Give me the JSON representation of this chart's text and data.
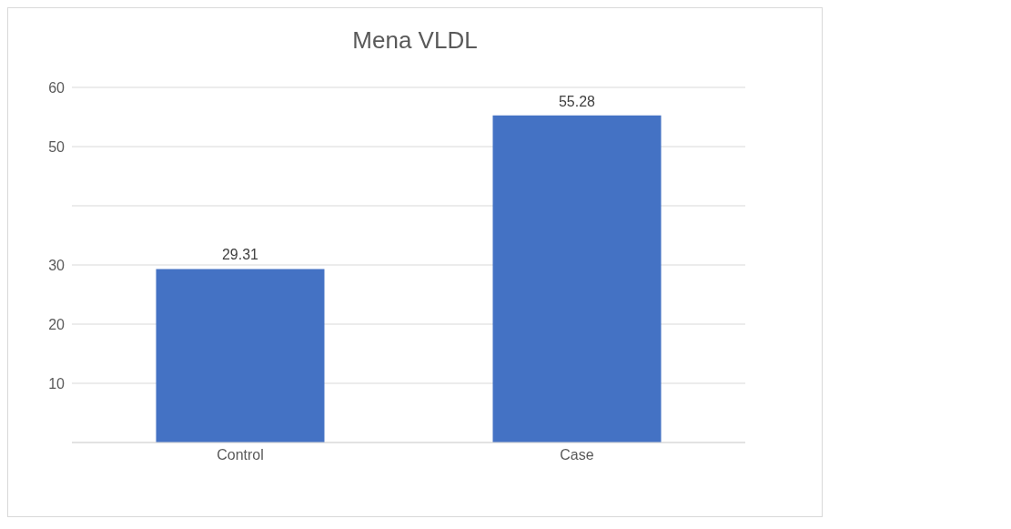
{
  "chart_data": {
    "type": "bar",
    "title": "Mena VLDL",
    "categories": [
      "Control",
      "Case"
    ],
    "values": [
      29.31,
      55.28
    ],
    "color": "#4472c4",
    "ylim": [
      0,
      60
    ],
    "yticks": [
      {
        "value": 0,
        "label": null
      },
      10,
      20,
      30,
      {
        "value": 40,
        "label": null
      },
      50,
      60
    ],
    "grid": "y",
    "data_labels": true
  }
}
